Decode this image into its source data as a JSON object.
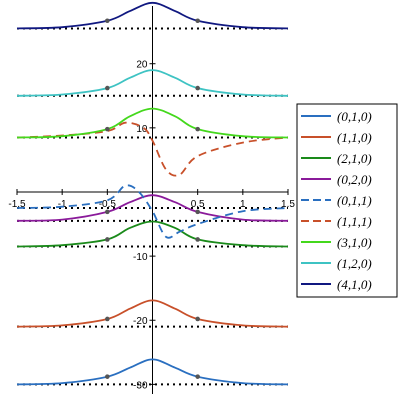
{
  "chart_data": {
    "type": "line",
    "title": "",
    "xlabel": "",
    "ylabel": "",
    "xlim": [
      -1.5,
      1.5
    ],
    "ylim": [
      -31.5,
      29
    ],
    "grid": false,
    "legend_placement": "right",
    "x_ticks": [
      -1.5,
      -1,
      -0.5,
      0.5,
      1,
      1.5
    ],
    "x_tick_labels": [
      "-1.5",
      "-1",
      "-0.5",
      "0.5",
      "1",
      "1.5"
    ],
    "y_ticks": [
      20,
      10,
      -10,
      -20,
      -30
    ],
    "y_tick_labels": [
      "20",
      "10",
      "-10",
      "-20",
      "-30"
    ],
    "colors": {
      "blue": "#2a6fc0",
      "orange": "#c8502a",
      "green": "#1a8a1a",
      "purple": "#8a1a9a",
      "light_green": "#44d81c",
      "cyan": "#3ec3c3",
      "navy": "#101880",
      "marker": "#555555"
    },
    "series": [
      {
        "name": "(0,1,0)",
        "color": "#2a6fc0",
        "dash": "solid",
        "baseline": -30,
        "points": [
          [
            -1.5,
            -30.0
          ],
          [
            -1.0,
            -29.8
          ],
          [
            -0.5,
            -28.8
          ],
          [
            -0.25,
            -27.4
          ],
          [
            0.0,
            -26.1
          ],
          [
            0.25,
            -27.4
          ],
          [
            0.5,
            -28.8
          ],
          [
            1.0,
            -29.8
          ],
          [
            1.5,
            -30.0
          ]
        ]
      },
      {
        "name": "(1,1,0)",
        "color": "#c8502a",
        "dash": "solid",
        "baseline": -21,
        "points": [
          [
            -1.5,
            -21.0
          ],
          [
            -1.0,
            -20.8
          ],
          [
            -0.5,
            -19.8
          ],
          [
            -0.25,
            -18.2
          ],
          [
            0.0,
            -16.9
          ],
          [
            0.25,
            -18.2
          ],
          [
            0.5,
            -19.8
          ],
          [
            1.0,
            -20.8
          ],
          [
            1.5,
            -21.0
          ]
        ]
      },
      {
        "name": "(2,1,0)",
        "color": "#1a8a1a",
        "dash": "solid",
        "baseline": -8.5,
        "points": [
          [
            -1.5,
            -8.5
          ],
          [
            -1.0,
            -8.3
          ],
          [
            -0.5,
            -7.4
          ],
          [
            -0.25,
            -5.6
          ],
          [
            0.0,
            -4.6
          ],
          [
            0.25,
            -5.6
          ],
          [
            0.5,
            -7.4
          ],
          [
            1.0,
            -8.3
          ],
          [
            1.5,
            -8.5
          ]
        ]
      },
      {
        "name": "(0,2,0)",
        "color": "#8a1a9a",
        "dash": "solid",
        "baseline": -4.5,
        "points": [
          [
            -1.5,
            -4.5
          ],
          [
            -1.0,
            -4.3
          ],
          [
            -0.5,
            -3.1
          ],
          [
            -0.25,
            -1.6
          ],
          [
            0.0,
            -0.5
          ],
          [
            0.25,
            -1.6
          ],
          [
            0.5,
            -3.1
          ],
          [
            1.0,
            -4.3
          ],
          [
            1.5,
            -4.5
          ]
        ]
      },
      {
        "name": "(0,1,1)",
        "color": "#2a6fc0",
        "dash": "dashed",
        "baseline": -2.5,
        "points": [
          [
            -1.5,
            -2.5
          ],
          [
            -1.0,
            -2.3
          ],
          [
            -0.5,
            -1.3
          ],
          [
            -0.3,
            1.0
          ],
          [
            -0.15,
            0.0
          ],
          [
            0.0,
            -3.0
          ],
          [
            0.15,
            -7.0
          ],
          [
            0.3,
            -6.2
          ],
          [
            0.5,
            -5.0
          ],
          [
            1.0,
            -3.0
          ],
          [
            1.5,
            -2.5
          ]
        ]
      },
      {
        "name": "(1,1,1)",
        "color": "#c8502a",
        "dash": "dashed",
        "baseline": 8.5,
        "points": [
          [
            -1.5,
            8.5
          ],
          [
            -1.0,
            8.8
          ],
          [
            -0.5,
            9.5
          ],
          [
            -0.3,
            10.8
          ],
          [
            -0.1,
            10.0
          ],
          [
            0.0,
            8.0
          ],
          [
            0.15,
            3.5
          ],
          [
            0.3,
            2.7
          ],
          [
            0.5,
            5.6
          ],
          [
            1.0,
            7.7
          ],
          [
            1.5,
            8.5
          ]
        ]
      },
      {
        "name": "(3,1,0)",
        "color": "#44d81c",
        "dash": "solid",
        "baseline": 8.5,
        "points": [
          [
            -1.5,
            8.5
          ],
          [
            -1.0,
            8.7
          ],
          [
            -0.5,
            9.8
          ],
          [
            -0.25,
            11.8
          ],
          [
            0.0,
            13.0
          ],
          [
            0.25,
            11.8
          ],
          [
            0.5,
            9.8
          ],
          [
            1.0,
            8.7
          ],
          [
            1.5,
            8.5
          ]
        ]
      },
      {
        "name": "(1,2,0)",
        "color": "#3ec3c3",
        "dash": "solid",
        "baseline": 15,
        "points": [
          [
            -1.5,
            15.0
          ],
          [
            -1.0,
            15.2
          ],
          [
            -0.5,
            16.2
          ],
          [
            -0.25,
            17.8
          ],
          [
            0.0,
            19.0
          ],
          [
            0.25,
            17.8
          ],
          [
            0.5,
            16.2
          ],
          [
            1.0,
            15.2
          ],
          [
            1.5,
            15.0
          ]
        ]
      },
      {
        "name": "(4,1,0)",
        "color": "#101880",
        "dash": "solid",
        "baseline": 25.5,
        "points": [
          [
            -1.5,
            25.5
          ],
          [
            -1.0,
            25.7
          ],
          [
            -0.5,
            26.7
          ],
          [
            -0.25,
            28.2
          ],
          [
            0.0,
            29.5
          ],
          [
            0.25,
            28.2
          ],
          [
            0.5,
            26.7
          ],
          [
            1.0,
            25.7
          ],
          [
            1.5,
            25.5
          ]
        ]
      }
    ],
    "baseline_style": "dotted",
    "marker_x": [
      -0.5,
      0.5
    ]
  },
  "legend": {
    "entries": [
      "(0,1,0)",
      "(1,1,0)",
      "(2,1,0)",
      "(0,2,0)",
      "(0,1,1)",
      "(1,1,1)",
      "(3,1,0)",
      "(1,2,0)",
      "(4,1,0)"
    ]
  }
}
